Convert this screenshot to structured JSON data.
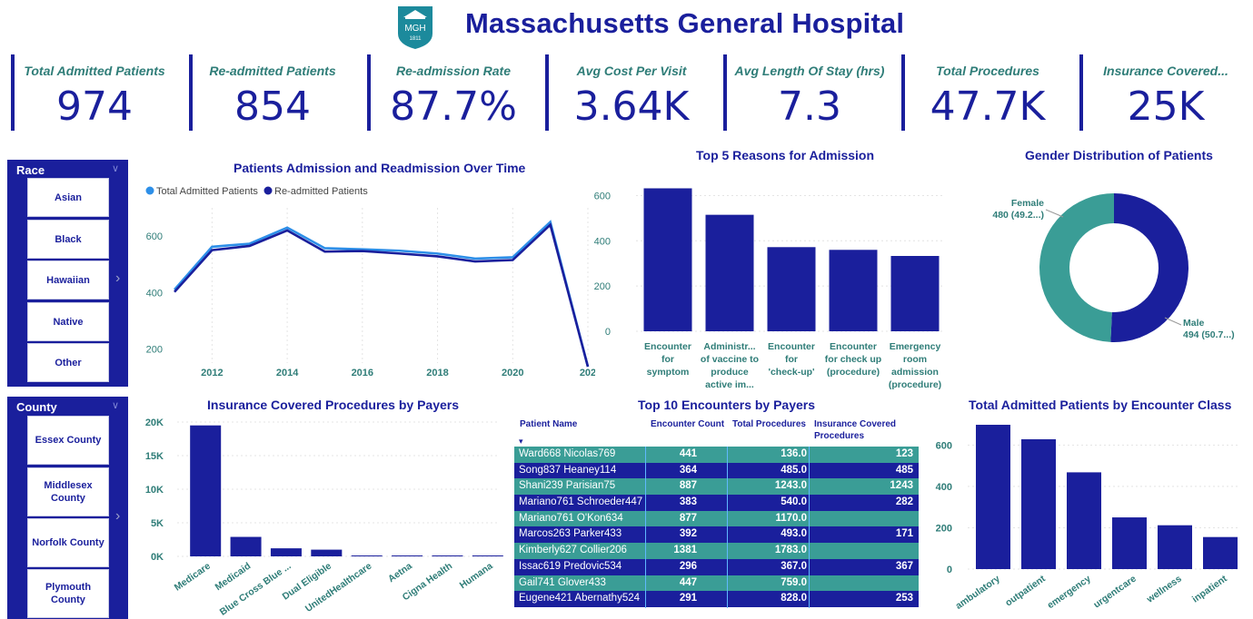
{
  "header": {
    "title": "Massachusetts General Hospital",
    "logo_text": "MGH",
    "logo_year": "1811",
    "colors": {
      "navy": "#1a1f9c",
      "teal": "#3a9d96",
      "label": "#2f7d78"
    }
  },
  "kpis": [
    {
      "label": "Total Admitted Patients",
      "value": "974"
    },
    {
      "label": "Re-admitted Patients",
      "value": "854"
    },
    {
      "label": "Re-admission Rate",
      "value": "87.7%"
    },
    {
      "label": "Avg Cost Per Visit",
      "value": "3.64K"
    },
    {
      "label": "Avg Length Of Stay (hrs)",
      "value": "7.3"
    },
    {
      "label": "Total Procedures",
      "value": "47.7K"
    },
    {
      "label": "Insurance Covered...",
      "value": "25K"
    }
  ],
  "race_slicer": {
    "title": "Race",
    "items": [
      "Asian",
      "Black",
      "Hawaiian",
      "Native",
      "Other"
    ]
  },
  "county_slicer": {
    "title": "County",
    "items": [
      "Essex County",
      "Middlesex County",
      "Norfolk County",
      "Plymouth County"
    ]
  },
  "admission_chart": {
    "title": "Patients Admission and Readmission Over Time",
    "chart_data": {
      "type": "line",
      "x": [
        2011,
        2012,
        2013,
        2014,
        2015,
        2016,
        2017,
        2018,
        2019,
        2020,
        2021,
        2022
      ],
      "x_ticks": [
        "2012",
        "2014",
        "2016",
        "2018",
        "2020",
        "202"
      ],
      "y_ticks": [
        "200",
        "400",
        "600"
      ],
      "ylim": [
        150,
        700
      ],
      "legend_position": "top-left",
      "series": [
        {
          "name": "Total Admitted Patients",
          "color": "#2d8fe8",
          "values": [
            410,
            562,
            573,
            630,
            557,
            553,
            548,
            538,
            520,
            525,
            650,
            100
          ]
        },
        {
          "name": "Re-admitted Patients",
          "color": "#1a1f9c",
          "values": [
            402,
            550,
            565,
            620,
            545,
            547,
            538,
            528,
            510,
            515,
            640,
            100
          ]
        }
      ]
    }
  },
  "reasons_chart": {
    "title": "Top 5 Reasons for Admission",
    "chart_data": {
      "type": "bar",
      "categories": [
        [
          "Encounter",
          "for",
          "symptom"
        ],
        [
          "Administr...",
          "of vaccine to",
          "produce",
          "active im..."
        ],
        [
          "Encounter",
          "for",
          "'check-up'"
        ],
        [
          "Encounter",
          "for check up",
          "(procedure)"
        ],
        [
          "Emergency",
          "room",
          "admission",
          "(procedure)"
        ]
      ],
      "values": [
        632,
        515,
        372,
        360,
        333
      ],
      "y_ticks": [
        "0",
        "200",
        "400",
        "600"
      ],
      "ylim": [
        0,
        650
      ]
    }
  },
  "gender_chart": {
    "title": "Gender Distribution of Patients",
    "chart_data": {
      "type": "pie",
      "slices": [
        {
          "name": "Male",
          "value": 494,
          "label": "494 (50.7...)",
          "color": "#1a1f9c"
        },
        {
          "name": "Female",
          "value": 480,
          "label": "480 (49.2...)",
          "color": "#3a9d96"
        }
      ]
    }
  },
  "payers_chart": {
    "title": "Insurance Covered Procedures by Payers",
    "chart_data": {
      "type": "bar",
      "categories": [
        "Medicare",
        "Medicaid",
        "Blue Cross Blue ...",
        "Dual Eligible",
        "UnitedHealthcare",
        "Aetna",
        "Cigna Health",
        "Humana"
      ],
      "values": [
        19500,
        2900,
        1200,
        1000,
        120,
        100,
        90,
        80
      ],
      "y_ticks": [
        "0K",
        "5K",
        "10K",
        "15K",
        "20K"
      ],
      "ylim": [
        0,
        20000
      ]
    }
  },
  "encounters_table": {
    "title": "Top 10 Encounters by Payers",
    "sort_arrow": "▾",
    "columns": [
      "Patient Name",
      "Encounter Count",
      "Total Procedures",
      "Insurance Covered Procedures"
    ],
    "rows": [
      [
        "Ward668 Nicolas769",
        "441",
        "136.0",
        "123"
      ],
      [
        "Song837 Heaney114",
        "364",
        "485.0",
        "485"
      ],
      [
        "Shani239 Parisian75",
        "887",
        "1243.0",
        "1243"
      ],
      [
        "Mariano761 Schroeder447",
        "383",
        "540.0",
        "282"
      ],
      [
        "Mariano761 O'Kon634",
        "877",
        "1170.0",
        ""
      ],
      [
        "Marcos263 Parker433",
        "392",
        "493.0",
        "171"
      ],
      [
        "Kimberly627 Collier206",
        "1381",
        "1783.0",
        ""
      ],
      [
        "Issac619 Predovic534",
        "296",
        "367.0",
        "367"
      ],
      [
        "Gail741 Glover433",
        "447",
        "759.0",
        ""
      ],
      [
        "Eugene421 Abernathy524",
        "291",
        "828.0",
        "253"
      ]
    ]
  },
  "class_chart": {
    "title": "Total Admitted Patients by Encounter Class",
    "chart_data": {
      "type": "bar",
      "categories": [
        "ambulatory",
        "outpatient",
        "emergency",
        "urgentcare",
        "wellness",
        "inpatient"
      ],
      "values": [
        698,
        628,
        468,
        250,
        212,
        155
      ],
      "y_ticks": [
        "0",
        "200",
        "400",
        "600"
      ],
      "ylim": [
        0,
        720
      ]
    }
  }
}
